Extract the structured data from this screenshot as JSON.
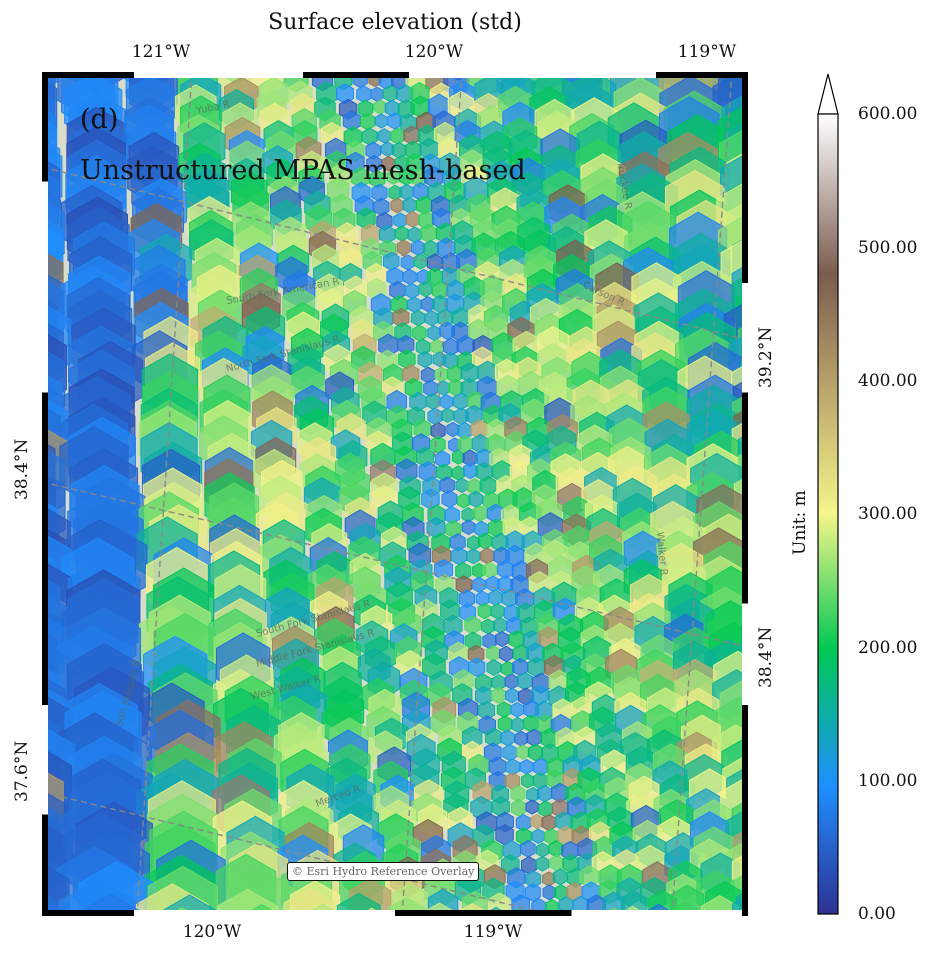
{
  "figure": {
    "title": "Surface elevation (std)",
    "panel_label": "(d)",
    "panel_subtitle": "Unstructured MPAS mesh-based",
    "attribution": "© Esri Hydro Reference Overlay"
  },
  "axes": {
    "top_ticks": [
      "121°W",
      "120°W",
      "119°W"
    ],
    "bottom_ticks": [
      "120°W",
      "119°W"
    ],
    "left_ticks": [
      "38.4°N",
      "37.6°N"
    ],
    "right_ticks": [
      "39.2°N",
      "38.4°N"
    ]
  },
  "map": {
    "basemap_labels": [
      "Yuba R",
      "South Fork American R",
      "North Fork Stanislaus R",
      "Middle Fork Stanislaus R",
      "South Fork Stanislaus R",
      "West Walker R",
      "San Joaquin R",
      "Merced R",
      "Carson R",
      "Truckee R",
      "Walker R"
    ],
    "colors": {
      "background_land": "#d8dcc8",
      "elev_0": "#2e3192",
      "elev_100": "#1f8fff",
      "elev_200": "#00c853",
      "elev_300": "#f4f58a",
      "elev_400": "#b9a36b",
      "elev_500": "#7a5c4e",
      "elev_600": "#ffffff"
    }
  },
  "colorbar": {
    "label": "Unit: m",
    "ticks": [
      "0.00",
      "100.00",
      "200.00",
      "300.00",
      "400.00",
      "500.00",
      "600.00"
    ],
    "min": 0,
    "max": 600,
    "extend": "max"
  }
}
